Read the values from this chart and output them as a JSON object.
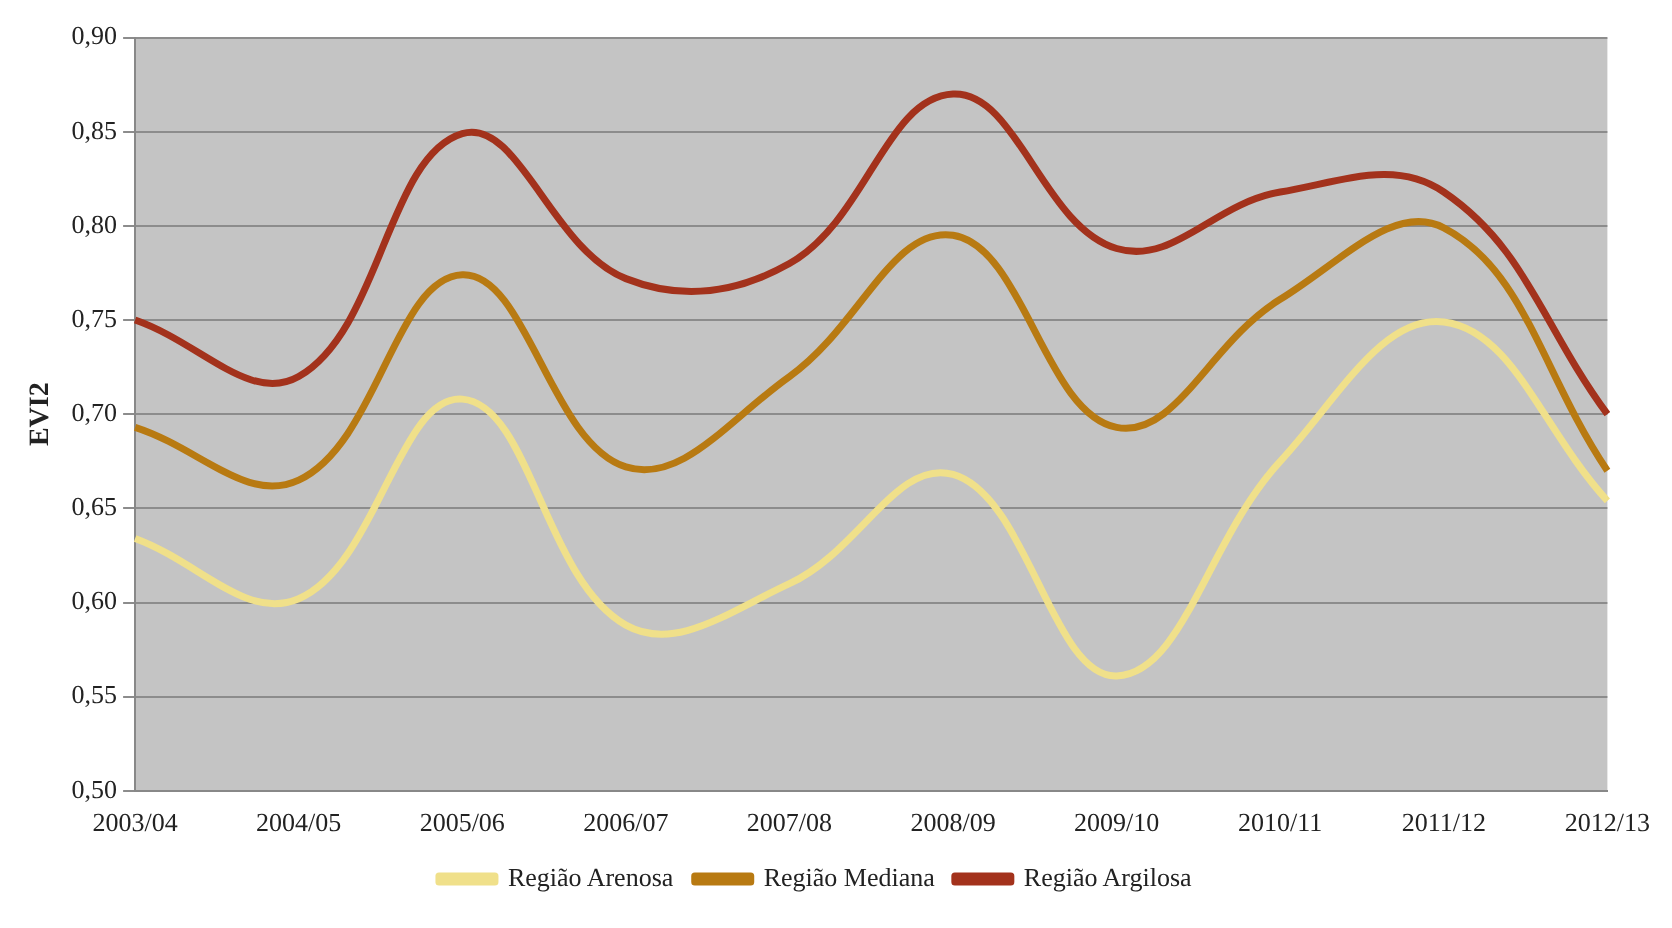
{
  "chart_data": {
    "type": "line",
    "ylabel": "EVI2",
    "categories": [
      "2003/04",
      "2004/05",
      "2005/06",
      "2006/07",
      "2007/08",
      "2008/09",
      "2009/10",
      "2010/11",
      "2011/12",
      "2012/13"
    ],
    "series": [
      {
        "name": "Região Arenosa",
        "color": "#f0e08a",
        "values": [
          0.634,
          0.602,
          0.708,
          0.588,
          0.61,
          0.668,
          0.561,
          0.675,
          0.749,
          0.654
        ]
      },
      {
        "name": "Região Mediana",
        "color": "#b87a12",
        "values": [
          0.693,
          0.665,
          0.774,
          0.672,
          0.72,
          0.795,
          0.693,
          0.761,
          0.799,
          0.67
        ]
      },
      {
        "name": "Região Argilosa",
        "color": "#a3321c",
        "values": [
          0.75,
          0.72,
          0.849,
          0.772,
          0.78,
          0.87,
          0.788,
          0.818,
          0.818,
          0.7
        ]
      }
    ],
    "ylim": [
      0.5,
      0.9
    ],
    "yticks": [
      {
        "value": 0.5,
        "label": "0,50"
      },
      {
        "value": 0.55,
        "label": "0,55"
      },
      {
        "value": 0.6,
        "label": "0,60"
      },
      {
        "value": 0.65,
        "label": "0,65"
      },
      {
        "value": 0.7,
        "label": "0,70"
      },
      {
        "value": 0.75,
        "label": "0,75"
      },
      {
        "value": 0.8,
        "label": "0,80"
      },
      {
        "value": 0.85,
        "label": "0,85"
      },
      {
        "value": 0.9,
        "label": "0,90"
      }
    ],
    "grid": "y",
    "legend": "bottom",
    "marker": "none",
    "line_style": "solid"
  }
}
